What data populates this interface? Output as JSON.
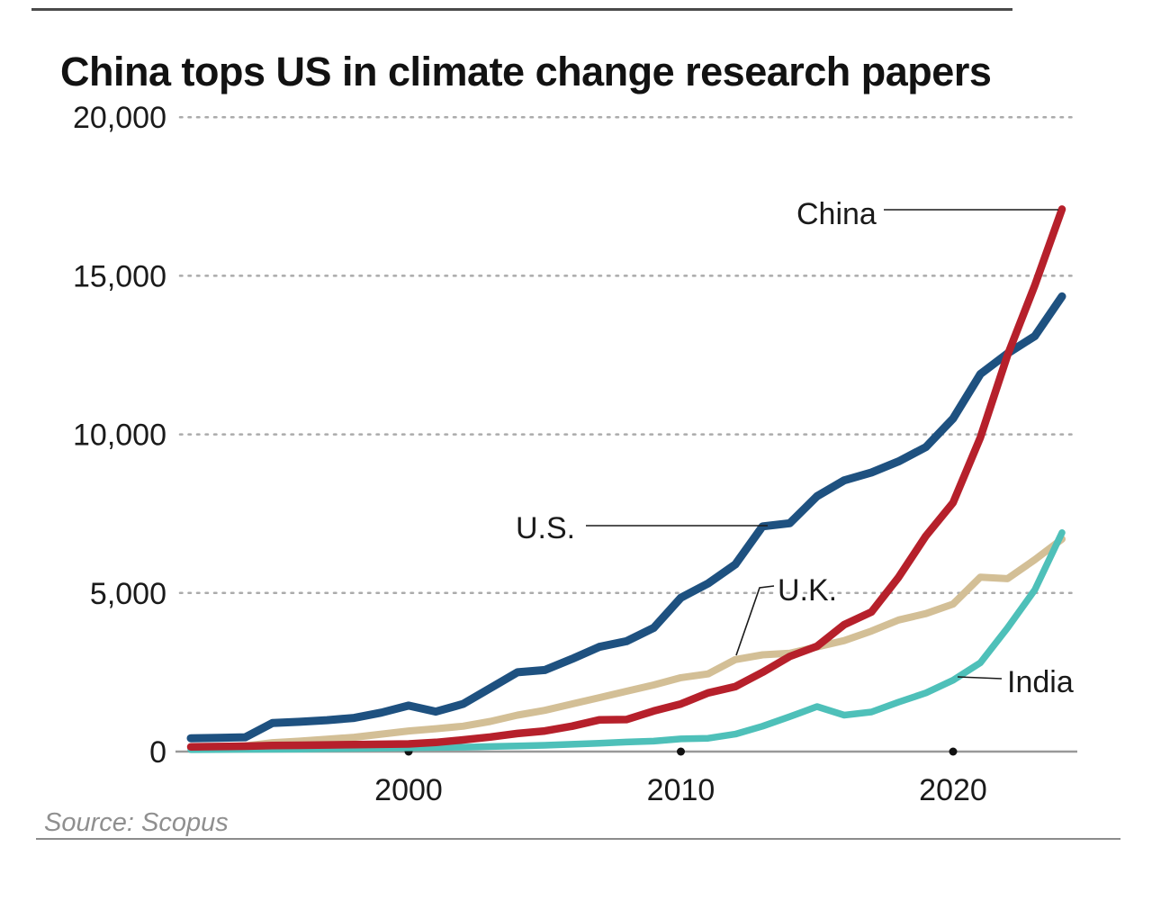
{
  "page": {
    "title": "China tops US in climate change research papers",
    "source": "Source: Scopus"
  },
  "chart_data": {
    "type": "line",
    "title": "China tops US in climate change research papers",
    "xlabel": "",
    "ylabel": "",
    "x_range": [
      1992,
      2024
    ],
    "x": [
      1992,
      1993,
      1994,
      1995,
      1996,
      1997,
      1998,
      1999,
      2000,
      2001,
      2002,
      2003,
      2004,
      2005,
      2006,
      2007,
      2008,
      2009,
      2010,
      2011,
      2012,
      2013,
      2014,
      2015,
      2016,
      2017,
      2018,
      2019,
      2020,
      2021,
      2022,
      2023,
      2024
    ],
    "series": [
      {
        "name": "U.S.",
        "label": "U.S.",
        "color": "#1e5180",
        "values": [
          420,
          430,
          450,
          900,
          940,
          990,
          1060,
          1230,
          1450,
          1260,
          1500,
          2000,
          2500,
          2570,
          2920,
          3300,
          3480,
          3900,
          4850,
          5300,
          5900,
          7100,
          7200,
          8050,
          8550,
          8800,
          9150,
          9600,
          10500,
          11900,
          12550,
          13100,
          14350
        ]
      },
      {
        "name": "China",
        "label": "China",
        "color": "#b6202b",
        "values": [
          150,
          160,
          170,
          190,
          200,
          210,
          220,
          230,
          240,
          290,
          370,
          460,
          570,
          650,
          800,
          1000,
          1010,
          1280,
          1500,
          1850,
          2050,
          2500,
          3000,
          3320,
          4000,
          4400,
          5500,
          6800,
          7850,
          9900,
          12500,
          14700,
          17100
        ]
      },
      {
        "name": "U.K.",
        "label": "U.K.",
        "color": "#d3bf96",
        "values": [
          130,
          150,
          180,
          280,
          330,
          390,
          450,
          550,
          650,
          720,
          800,
          950,
          1150,
          1300,
          1500,
          1700,
          1900,
          2100,
          2330,
          2450,
          2900,
          3050,
          3100,
          3300,
          3500,
          3800,
          4150,
          4350,
          4650,
          5500,
          5450,
          6050,
          6700
        ]
      },
      {
        "name": "India",
        "label": "India",
        "color": "#4ec0b9",
        "values": [
          60,
          65,
          70,
          75,
          80,
          90,
          100,
          110,
          120,
          130,
          140,
          160,
          180,
          200,
          230,
          260,
          300,
          330,
          400,
          420,
          550,
          800,
          1100,
          1420,
          1150,
          1250,
          1560,
          1850,
          2250,
          2800,
          3900,
          5100,
          6900
        ]
      }
    ],
    "ylim": [
      0,
      20000
    ],
    "yticks": [
      {
        "value": 0,
        "label": "0"
      },
      {
        "value": 5000,
        "label": "5,000"
      },
      {
        "value": 10000,
        "label": "10,000"
      },
      {
        "value": 15000,
        "label": "15,000"
      },
      {
        "value": 20000,
        "label": "20,000"
      }
    ],
    "xticks": [
      {
        "value": 2000,
        "label": "2000"
      },
      {
        "value": 2010,
        "label": "2010"
      },
      {
        "value": 2020,
        "label": "2020"
      }
    ],
    "grid": "horizontal-dotted",
    "legend": "inline-labels-with-leader-lines",
    "source": "Source: Scopus"
  },
  "colors": {
    "us_line": "#1e5180",
    "china_line": "#b6202b",
    "uk_line": "#d3bf96",
    "india_line": "#4ec0b9",
    "axis": "#999999",
    "gridline": "#ababab",
    "tick_dot": "#111111",
    "text": "#1a1a1a",
    "source_text": "#8f8f8f",
    "top_rule": "#4a4a4a",
    "bottom_rule": "#8c8c8c"
  }
}
